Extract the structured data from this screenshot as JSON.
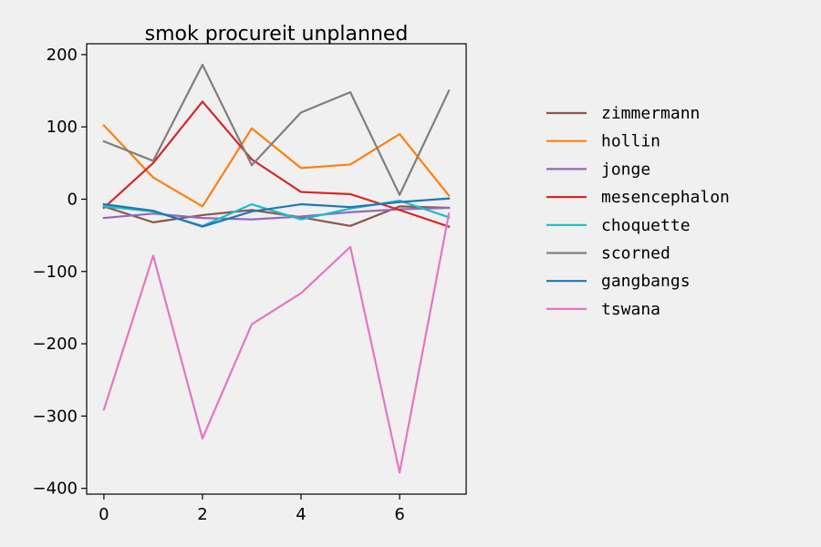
{
  "chart_data": {
    "type": "line",
    "title": "smok procureit unplanned",
    "xlabel": "",
    "ylabel": "",
    "x": [
      0,
      1,
      2,
      3,
      4,
      5,
      6,
      7
    ],
    "xlim": [
      -0.35,
      7.35
    ],
    "ylim": [
      -408,
      215
    ],
    "xticks": [
      0,
      2,
      4,
      6
    ],
    "yticks": [
      -400,
      -300,
      -200,
      -100,
      0,
      100,
      200
    ],
    "legend_position": "right",
    "grid": false,
    "series": [
      {
        "name": "zimmermann",
        "color": "#8c564b",
        "values": [
          -10,
          -32,
          -22,
          -15,
          -25,
          -37,
          -10,
          -12
        ]
      },
      {
        "name": "hollin",
        "color": "#ff7f0e",
        "values": [
          102,
          30,
          -10,
          98,
          43,
          48,
          90,
          5
        ]
      },
      {
        "name": "jonge",
        "color": "#9467bd",
        "values": [
          -26,
          -20,
          -26,
          -28,
          -24,
          -18,
          -14,
          -12
        ]
      },
      {
        "name": "mesencephalon",
        "color": "#d62728",
        "values": [
          -12,
          50,
          135,
          55,
          10,
          7,
          -15,
          -38
        ]
      },
      {
        "name": "choquette",
        "color": "#17becf",
        "values": [
          -10,
          -17,
          -37,
          -7,
          -28,
          -13,
          -2,
          -25
        ]
      },
      {
        "name": "scorned",
        "color": "#7f7f7f",
        "values": [
          80,
          53,
          186,
          47,
          120,
          148,
          6,
          150
        ]
      },
      {
        "name": "gangbangs",
        "color": "#1f77b4",
        "values": [
          -7,
          -16,
          -38,
          -17,
          -7,
          -11,
          -4,
          1
        ]
      },
      {
        "name": "tswana",
        "color": "#e377c2",
        "values": [
          -291,
          -78,
          -331,
          -173,
          -130,
          -66,
          -378,
          -20
        ]
      }
    ]
  }
}
